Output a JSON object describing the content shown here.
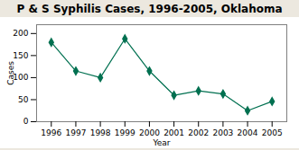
{
  "chart_data": {
    "type": "line",
    "title": "P & S Syphilis Cases, 1996-2005, Oklahoma",
    "xlabel": "Year",
    "ylabel": "Cases",
    "x": [
      1996,
      1997,
      1998,
      1999,
      2000,
      2001,
      2002,
      2003,
      2004,
      2005
    ],
    "values": [
      180,
      115,
      100,
      188,
      115,
      60,
      70,
      63,
      25,
      46
    ],
    "color": "#007050",
    "marker": "diamond",
    "xlim": [
      1995.4,
      2005.6
    ],
    "xticks": [
      1996,
      1997,
      1998,
      1999,
      2000,
      2001,
      2002,
      2003,
      2004,
      2005
    ],
    "ylim": [
      0,
      220
    ],
    "yticks": [
      0,
      50,
      100,
      150,
      200
    ]
  }
}
